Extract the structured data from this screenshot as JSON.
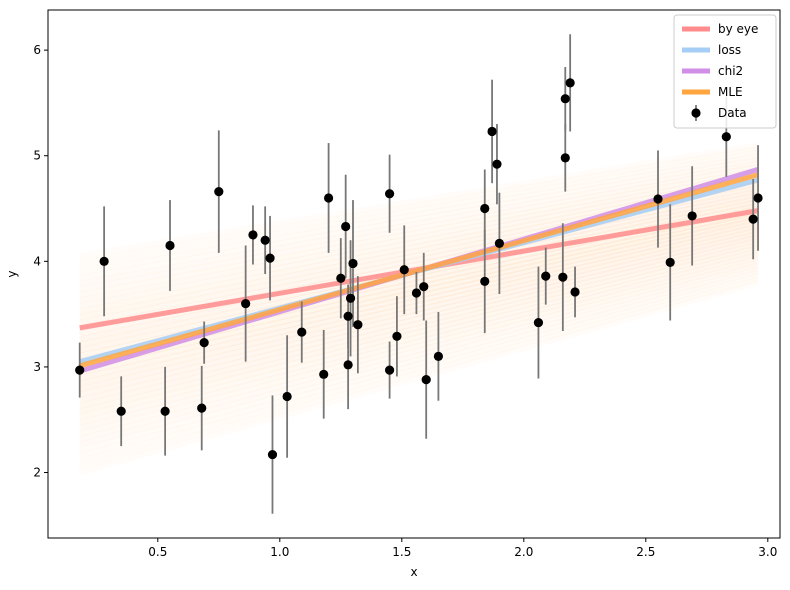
{
  "chart_data": {
    "type": "scatter",
    "xlabel": "x",
    "ylabel": "y",
    "xlim": [
      0.05,
      3.05
    ],
    "ylim": [
      1.38,
      6.38
    ],
    "xticks": [
      0.5,
      1.0,
      1.5,
      2.0,
      2.5,
      3.0
    ],
    "xtick_labels": [
      "0.5",
      "1.0",
      "1.5",
      "2.0",
      "2.5",
      "3.0"
    ],
    "yticks": [
      2,
      3,
      4,
      5,
      6
    ],
    "ytick_labels": [
      "2",
      "3",
      "4",
      "5",
      "6"
    ],
    "grid": false,
    "legend_position": "top-right",
    "band": {
      "color": "#ff9f3f",
      "x_range": [
        0.18,
        2.96
      ],
      "note": "posterior sample lines",
      "y_low": [
        2.0,
        3.8
      ],
      "y_high": [
        4.05,
        5.1
      ]
    },
    "lines": [
      {
        "name": "by eye",
        "color": "#ff8c8c",
        "x": [
          0.18,
          2.96
        ],
        "y": [
          3.37,
          4.48
        ]
      },
      {
        "name": "loss",
        "color": "#a6cdf5",
        "x": [
          0.18,
          2.96
        ],
        "y": [
          3.05,
          4.77
        ]
      },
      {
        "name": "chi2",
        "color": "#d08ee6",
        "x": [
          0.18,
          2.96
        ],
        "y": [
          2.96,
          4.87
        ]
      },
      {
        "name": "MLE",
        "color": "#ffa53f",
        "x": [
          0.18,
          2.96
        ],
        "y": [
          3.01,
          4.82
        ]
      }
    ],
    "series": [
      {
        "name": "Data",
        "color": "#000000",
        "errorbar_color": "#777777",
        "points": [
          [
            0.18,
            2.97,
            0.26
          ],
          [
            0.28,
            4.0,
            0.52
          ],
          [
            0.35,
            2.58,
            0.33
          ],
          [
            0.53,
            2.58,
            0.42
          ],
          [
            0.55,
            4.15,
            0.43
          ],
          [
            0.68,
            2.61,
            0.4
          ],
          [
            0.69,
            3.23,
            0.2
          ],
          [
            0.75,
            4.66,
            0.58
          ],
          [
            0.86,
            3.6,
            0.55
          ],
          [
            0.89,
            4.25,
            0.28
          ],
          [
            0.94,
            4.2,
            0.32
          ],
          [
            0.96,
            4.03,
            0.4
          ],
          [
            0.97,
            2.17,
            0.56
          ],
          [
            1.03,
            2.72,
            0.58
          ],
          [
            1.09,
            3.33,
            0.29
          ],
          [
            1.18,
            2.93,
            0.42
          ],
          [
            1.2,
            4.6,
            0.52
          ],
          [
            1.25,
            3.84,
            0.38
          ],
          [
            1.27,
            4.33,
            0.49
          ],
          [
            1.28,
            3.48,
            0.3
          ],
          [
            1.28,
            3.02,
            0.42
          ],
          [
            1.29,
            3.65,
            0.55
          ],
          [
            1.3,
            3.98,
            0.6
          ],
          [
            1.32,
            3.4,
            0.46
          ],
          [
            1.45,
            4.64,
            0.37
          ],
          [
            1.45,
            2.97,
            0.27
          ],
          [
            1.48,
            3.29,
            0.38
          ],
          [
            1.51,
            3.92,
            0.42
          ],
          [
            1.56,
            3.7,
            0.2
          ],
          [
            1.59,
            3.76,
            0.32
          ],
          [
            1.6,
            2.88,
            0.56
          ],
          [
            1.65,
            3.1,
            0.42
          ],
          [
            1.84,
            4.5,
            0.37
          ],
          [
            1.84,
            3.81,
            0.49
          ],
          [
            1.87,
            5.23,
            0.49
          ],
          [
            1.89,
            4.92,
            0.38
          ],
          [
            1.9,
            4.17,
            0.48
          ],
          [
            2.06,
            3.42,
            0.53
          ],
          [
            2.09,
            3.86,
            0.27
          ],
          [
            2.16,
            3.85,
            0.51
          ],
          [
            2.17,
            5.54,
            0.3
          ],
          [
            2.17,
            4.98,
            0.32
          ],
          [
            2.19,
            5.69,
            0.46
          ],
          [
            2.21,
            3.71,
            0.24
          ],
          [
            2.55,
            4.59,
            0.46
          ],
          [
            2.6,
            3.99,
            0.55
          ],
          [
            2.69,
            4.43,
            0.47
          ],
          [
            2.83,
            5.18,
            0.38
          ],
          [
            2.94,
            4.4,
            0.38
          ],
          [
            2.96,
            4.6,
            0.5
          ]
        ]
      }
    ]
  }
}
